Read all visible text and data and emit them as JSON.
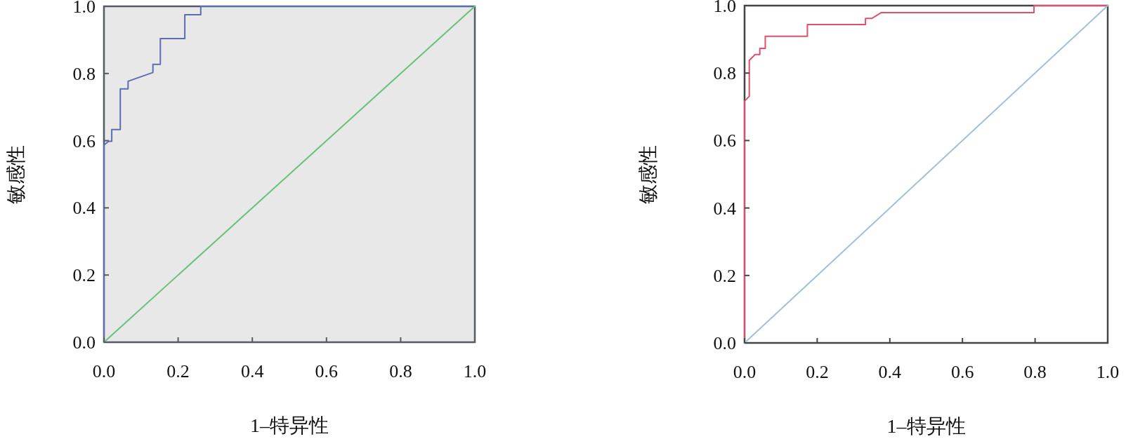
{
  "chart_data": [
    {
      "type": "line",
      "xlabel": "1–特异性",
      "ylabel": "敏感性",
      "xlim": [
        0,
        1
      ],
      "ylim": [
        0,
        1
      ],
      "xticks": [
        {
          "value": 0,
          "label": "0.0"
        },
        {
          "value": 0.2,
          "label": "0.2"
        },
        {
          "value": 0.4,
          "label": "0.4"
        },
        {
          "value": 0.6,
          "label": "0.6"
        },
        {
          "value": 0.8,
          "label": "0.8"
        },
        {
          "value": 1,
          "label": "1.0"
        }
      ],
      "yticks": [
        {
          "value": 0,
          "label": "0.0"
        },
        {
          "value": 0.2,
          "label": "0.2"
        },
        {
          "value": 0.4,
          "label": "0.4"
        },
        {
          "value": 0.6,
          "label": "0.6"
        },
        {
          "value": 0.8,
          "label": "0.8"
        },
        {
          "value": 1,
          "label": "1.0"
        }
      ],
      "series": [
        {
          "color": "#5b6db3",
          "x": [
            0,
            0,
            0.013,
            0.021,
            0.021,
            0.044,
            0.044,
            0.065,
            0.065,
            0.132,
            0.132,
            0.152,
            0.152,
            0.218,
            0.218,
            0.261,
            0.261,
            1
          ],
          "values": [
            0,
            0.587,
            0.598,
            0.598,
            0.633,
            0.633,
            0.754,
            0.754,
            0.777,
            0.803,
            0.827,
            0.827,
            0.904,
            0.904,
            0.975,
            0.975,
            1,
            1
          ]
        },
        {
          "color": "#66c27a",
          "x": [
            0,
            1
          ],
          "values": [
            0,
            1
          ]
        }
      ]
    },
    {
      "type": "line",
      "xlabel": "1–特异性",
      "ylabel": "敏感性",
      "xlim": [
        0,
        1
      ],
      "ylim": [
        0,
        1
      ],
      "xticks": [
        {
          "value": 0,
          "label": "0.0"
        },
        {
          "value": 0.2,
          "label": "0.2"
        },
        {
          "value": 0.4,
          "label": "0.4"
        },
        {
          "value": 0.6,
          "label": "0.6"
        },
        {
          "value": 0.8,
          "label": "0.8"
        },
        {
          "value": 1,
          "label": "1.0"
        }
      ],
      "yticks": [
        {
          "value": 0,
          "label": "0.0"
        },
        {
          "value": 0.2,
          "label": "0.2"
        },
        {
          "value": 0.4,
          "label": "0.4"
        },
        {
          "value": 0.6,
          "label": "0.6"
        },
        {
          "value": 0.8,
          "label": "0.8"
        },
        {
          "value": 1,
          "label": "1.0"
        }
      ],
      "series": [
        {
          "color": "#e0506a",
          "x": [
            0,
            0,
            0.013,
            0.013,
            0.029,
            0.042,
            0.042,
            0.057,
            0.057,
            0.173,
            0.173,
            0.333,
            0.333,
            0.35,
            0.376,
            0.797,
            0.797,
            1
          ],
          "values": [
            0,
            0.717,
            0.731,
            0.838,
            0.855,
            0.855,
            0.873,
            0.873,
            0.909,
            0.909,
            0.944,
            0.944,
            0.962,
            0.962,
            0.979,
            0.979,
            1,
            1
          ]
        },
        {
          "color": "#9fc0de",
          "x": [
            0,
            1
          ],
          "values": [
            0,
            1
          ]
        }
      ]
    }
  ]
}
